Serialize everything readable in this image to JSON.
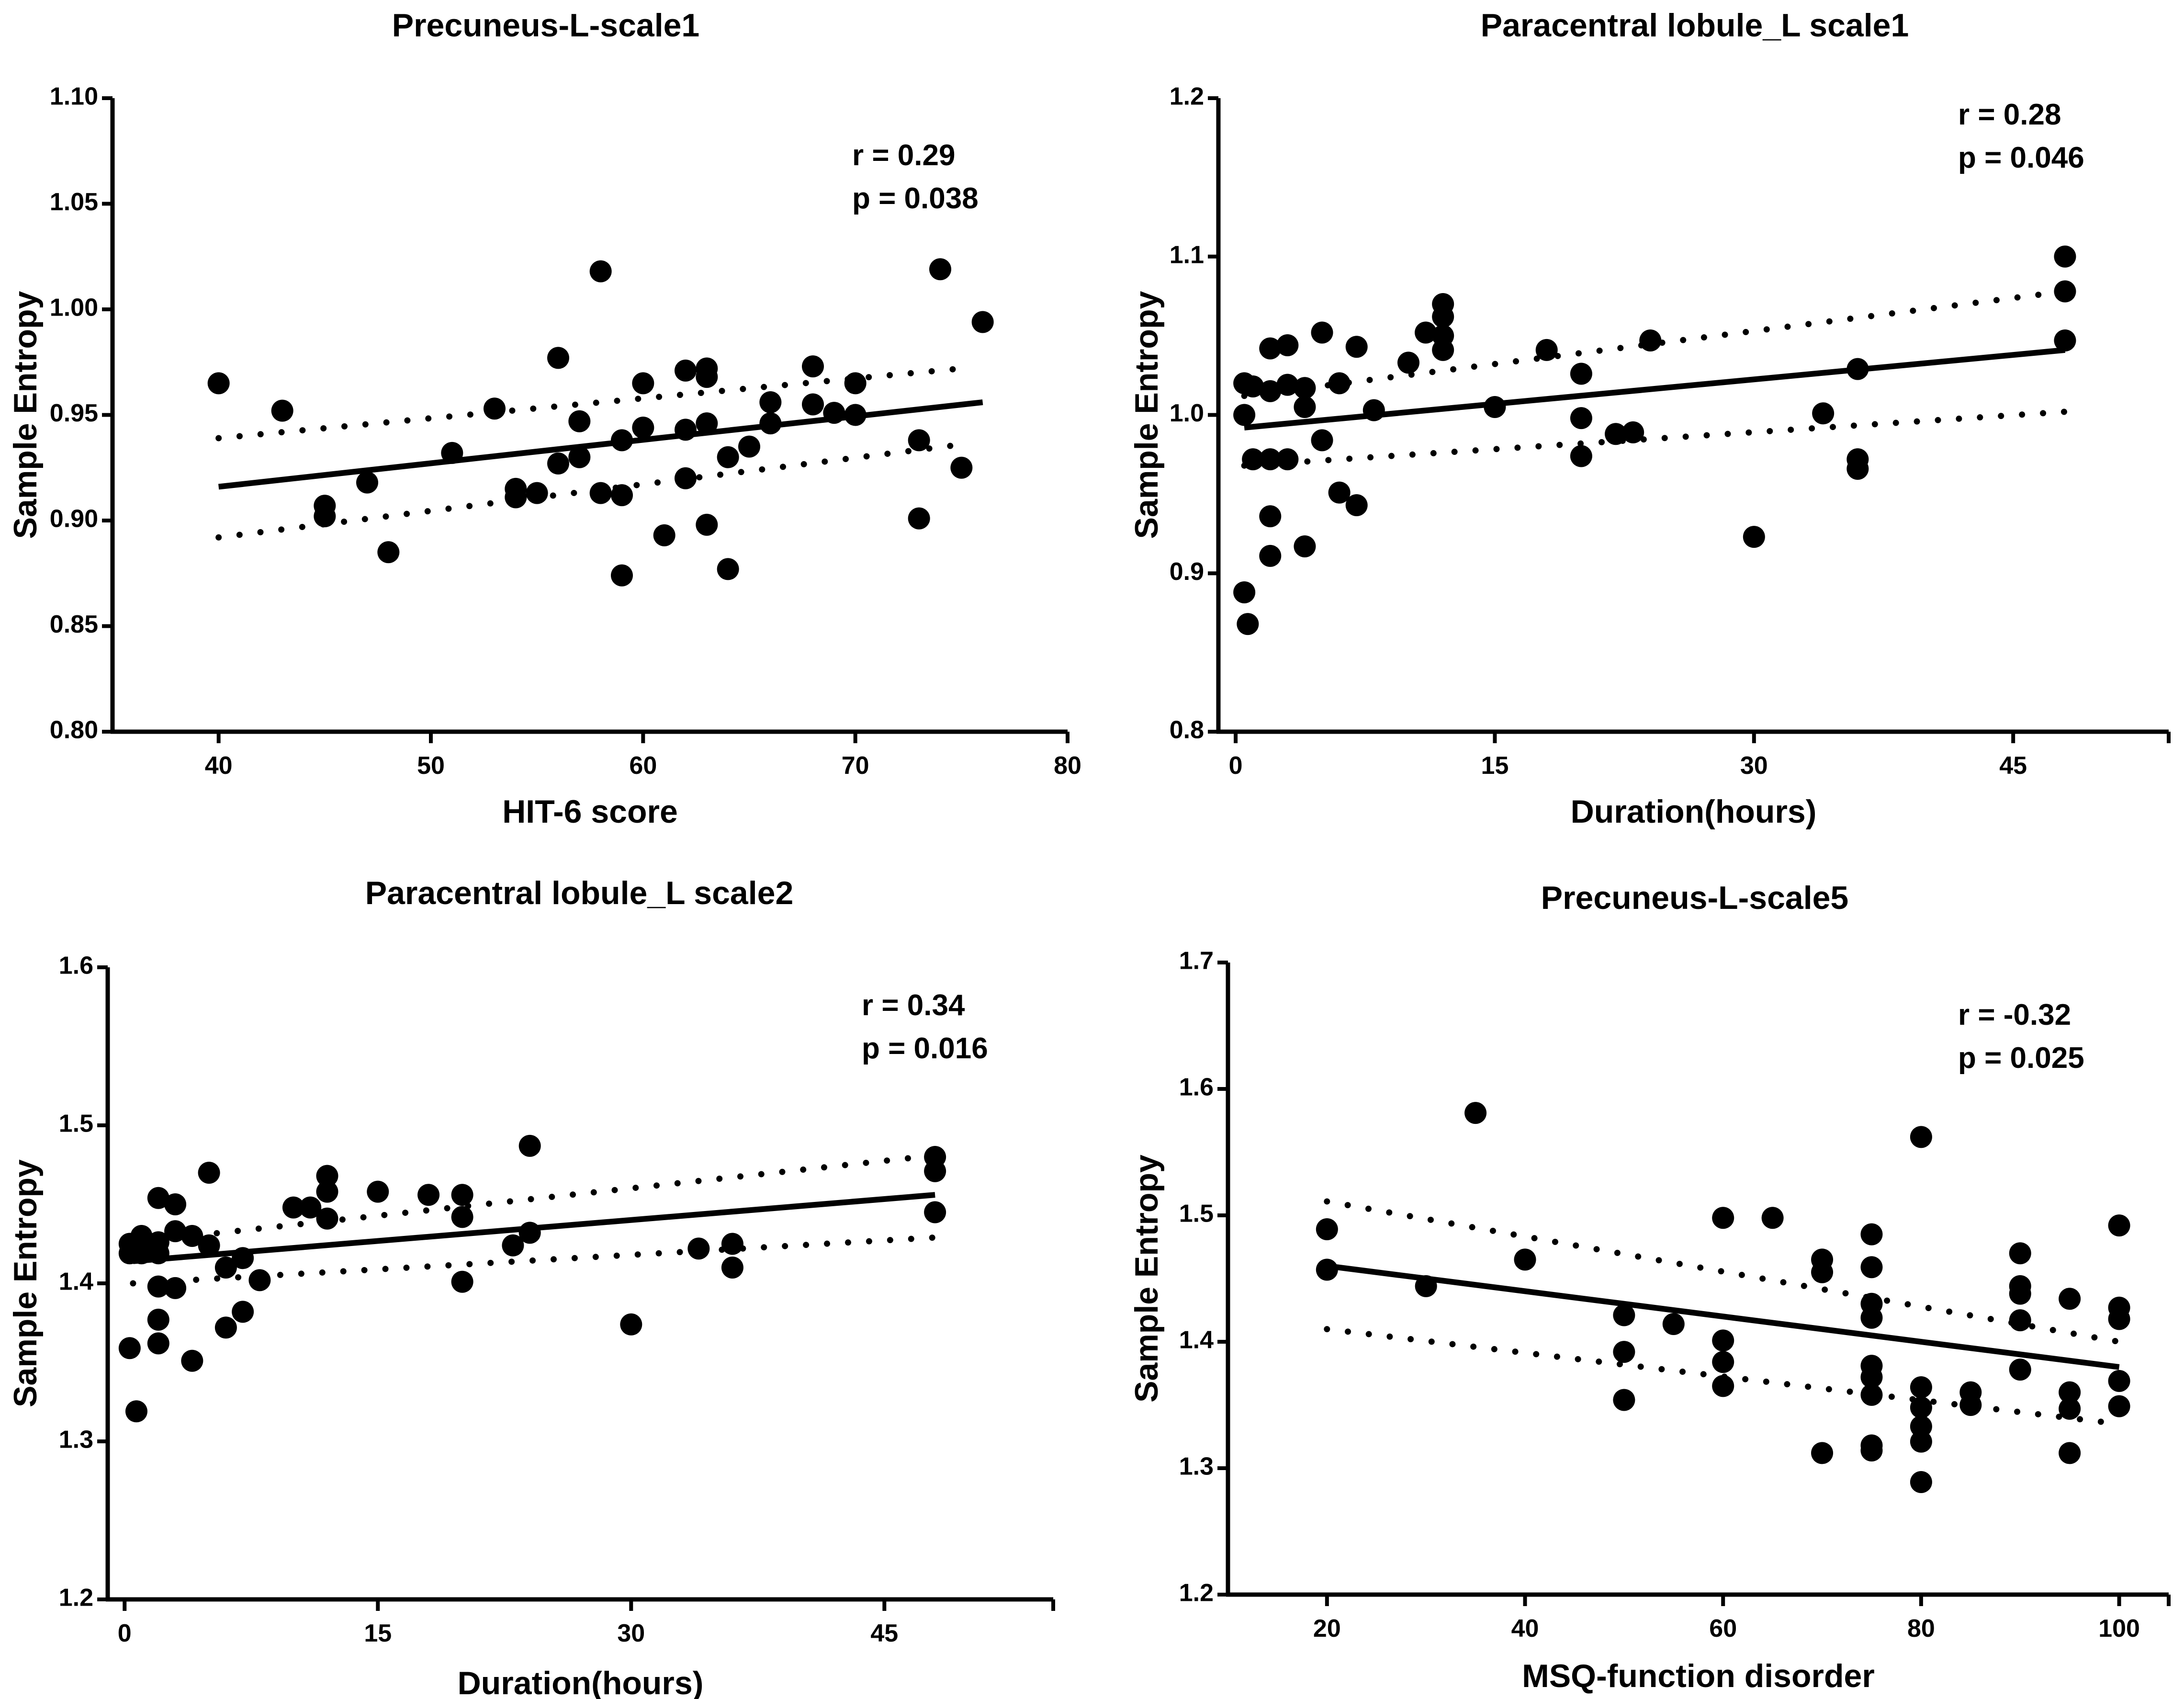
{
  "chart_data": [
    {
      "type": "scatter",
      "title": "Precuneus-L-scale1",
      "xlabel": "HIT-6 score",
      "ylabel": "Sample Entropy",
      "xlim": [
        35,
        80
      ],
      "ylim": [
        0.8,
        1.1
      ],
      "xticks": [
        40,
        50,
        60,
        70,
        80
      ],
      "yticks": [
        0.8,
        0.85,
        0.9,
        0.95,
        1.0,
        1.05,
        1.1
      ],
      "x_tick_labels": [
        "40",
        "50",
        "60",
        "70",
        "80"
      ],
      "y_tick_labels": [
        "0.80",
        "0.85",
        "0.90",
        "0.95",
        "1.00",
        "1.05",
        "1.10"
      ],
      "stats": {
        "r": "r = 0.29",
        "p": "p = 0.038"
      },
      "regression": {
        "x": [
          40,
          76
        ],
        "y": [
          0.916,
          0.956
        ]
      },
      "ci_upper": {
        "x": [
          40,
          75
        ],
        "y": [
          0.939,
          0.972
        ]
      },
      "ci_lower": {
        "x": [
          40,
          75
        ],
        "y": [
          0.892,
          0.936
        ]
      },
      "points": [
        [
          40,
          0.965
        ],
        [
          43,
          0.952
        ],
        [
          45,
          0.907
        ],
        [
          45,
          0.902
        ],
        [
          47,
          0.918
        ],
        [
          48,
          0.885
        ],
        [
          51,
          0.932
        ],
        [
          53,
          0.953
        ],
        [
          54,
          0.915
        ],
        [
          54,
          0.911
        ],
        [
          55,
          0.913
        ],
        [
          56,
          0.977
        ],
        [
          56,
          0.927
        ],
        [
          57,
          0.947
        ],
        [
          57,
          0.93
        ],
        [
          58,
          1.018
        ],
        [
          58,
          0.913
        ],
        [
          59,
          0.938
        ],
        [
          59,
          0.912
        ],
        [
          59,
          0.874
        ],
        [
          60,
          0.965
        ],
        [
          60,
          0.944
        ],
        [
          61,
          0.893
        ],
        [
          62,
          0.971
        ],
        [
          62,
          0.943
        ],
        [
          62,
          0.92
        ],
        [
          63,
          0.972
        ],
        [
          63,
          0.968
        ],
        [
          63,
          0.946
        ],
        [
          63,
          0.898
        ],
        [
          64,
          0.93
        ],
        [
          64,
          0.877
        ],
        [
          65,
          0.935
        ],
        [
          66,
          0.956
        ],
        [
          66,
          0.946
        ],
        [
          68,
          0.973
        ],
        [
          68,
          0.955
        ],
        [
          69,
          0.951
        ],
        [
          70,
          0.965
        ],
        [
          70,
          0.95
        ],
        [
          73,
          0.938
        ],
        [
          73,
          0.901
        ],
        [
          74,
          1.019
        ],
        [
          75,
          0.925
        ],
        [
          76,
          0.994
        ]
      ]
    },
    {
      "type": "scatter",
      "title": "Paracentral lobule_L scale1",
      "xlabel": "Duration(hours)",
      "ylabel": "Sample Entropy",
      "xlim": [
        -1,
        54
      ],
      "ylim": [
        0.8,
        1.2
      ],
      "xticks": [
        0,
        15,
        30,
        45
      ],
      "yticks": [
        0.8,
        0.9,
        1.0,
        1.1,
        1.2
      ],
      "x_tick_labels": [
        "0",
        "15",
        "30",
        "45"
      ],
      "y_tick_labels": [
        "0.8",
        "0.9",
        "1.0",
        "1.1",
        "1.2"
      ],
      "stats": {
        "r": "r = 0.28",
        "p": "p = 0.046"
      },
      "regression": {
        "x": [
          0.5,
          48
        ],
        "y": [
          0.992,
          1.041
        ]
      },
      "ci_upper": {
        "x": [
          0.5,
          48
        ],
        "y": [
          1.012,
          1.078
        ]
      },
      "ci_lower": {
        "x": [
          0.5,
          48
        ],
        "y": [
          0.968,
          1.002
        ]
      },
      "points": [
        [
          0.5,
          1.02
        ],
        [
          0.5,
          1.0
        ],
        [
          0.5,
          0.888
        ],
        [
          0.7,
          0.868
        ],
        [
          1,
          1.018
        ],
        [
          1,
          0.972
        ],
        [
          2,
          1.042
        ],
        [
          2,
          1.015
        ],
        [
          2,
          0.972
        ],
        [
          2,
          0.936
        ],
        [
          2,
          0.911
        ],
        [
          3,
          1.044
        ],
        [
          3,
          1.019
        ],
        [
          3,
          0.972
        ],
        [
          4,
          1.017
        ],
        [
          4,
          1.005
        ],
        [
          4,
          0.917
        ],
        [
          5,
          1.052
        ],
        [
          5,
          0.984
        ],
        [
          6,
          1.02
        ],
        [
          6,
          0.951
        ],
        [
          7,
          1.043
        ],
        [
          7,
          0.943
        ],
        [
          8,
          1.003
        ],
        [
          10,
          1.033
        ],
        [
          11,
          1.052
        ],
        [
          12,
          1.07
        ],
        [
          12,
          1.062
        ],
        [
          12,
          1.05
        ],
        [
          12,
          1.041
        ],
        [
          15,
          1.005
        ],
        [
          18,
          1.041
        ],
        [
          20,
          1.026
        ],
        [
          20,
          0.998
        ],
        [
          20,
          0.974
        ],
        [
          22,
          0.988
        ],
        [
          23,
          0.989
        ],
        [
          24,
          1.047
        ],
        [
          30,
          0.923
        ],
        [
          34,
          1.001
        ],
        [
          36,
          1.029
        ],
        [
          36,
          0.972
        ],
        [
          36,
          0.966
        ],
        [
          48,
          1.1
        ],
        [
          48,
          1.078
        ],
        [
          48,
          1.047
        ]
      ]
    },
    {
      "type": "scatter",
      "title": "Paracentral lobule_L scale2",
      "xlabel": "Duration(hours)",
      "ylabel": "Sample Entropy",
      "xlim": [
        -1,
        55
      ],
      "ylim": [
        1.2,
        1.6
      ],
      "xticks": [
        0,
        15,
        30,
        45
      ],
      "yticks": [
        1.2,
        1.3,
        1.4,
        1.5,
        1.6
      ],
      "x_tick_labels": [
        "0",
        "15",
        "30",
        "45"
      ],
      "y_tick_labels": [
        "1.2",
        "1.3",
        "1.4",
        "1.5",
        "1.6"
      ],
      "stats": {
        "r": "r = 0.34",
        "p": "p = 0.016"
      },
      "regression": {
        "x": [
          0.5,
          48
        ],
        "y": [
          1.414,
          1.456
        ]
      },
      "ci_upper": {
        "x": [
          0.5,
          48
        ],
        "y": [
          1.426,
          1.481
        ]
      },
      "ci_lower": {
        "x": [
          0.5,
          48
        ],
        "y": [
          1.4,
          1.429
        ]
      },
      "points": [
        [
          0.3,
          1.425
        ],
        [
          0.3,
          1.419
        ],
        [
          0.3,
          1.359
        ],
        [
          0.7,
          1.319
        ],
        [
          1,
          1.43
        ],
        [
          1,
          1.419
        ],
        [
          2,
          1.454
        ],
        [
          2,
          1.426
        ],
        [
          2,
          1.419
        ],
        [
          2,
          1.398
        ],
        [
          2,
          1.377
        ],
        [
          2,
          1.362
        ],
        [
          3,
          1.45
        ],
        [
          3,
          1.433
        ],
        [
          3,
          1.397
        ],
        [
          4,
          1.43
        ],
        [
          4,
          1.351
        ],
        [
          5,
          1.47
        ],
        [
          5,
          1.424
        ],
        [
          6,
          1.41
        ],
        [
          6,
          1.372
        ],
        [
          7,
          1.416
        ],
        [
          7,
          1.382
        ],
        [
          8,
          1.402
        ],
        [
          10,
          1.448
        ],
        [
          11,
          1.448
        ],
        [
          12,
          1.468
        ],
        [
          12,
          1.458
        ],
        [
          12,
          1.441
        ],
        [
          15,
          1.458
        ],
        [
          18,
          1.456
        ],
        [
          20,
          1.456
        ],
        [
          20,
          1.442
        ],
        [
          20,
          1.401
        ],
        [
          23,
          1.424
        ],
        [
          24,
          1.487
        ],
        [
          24,
          1.432
        ],
        [
          30,
          1.374
        ],
        [
          34,
          1.422
        ],
        [
          36,
          1.425
        ],
        [
          36,
          1.41
        ],
        [
          48,
          1.48
        ],
        [
          48,
          1.471
        ],
        [
          48,
          1.445
        ]
      ]
    },
    {
      "type": "scatter",
      "title": "Precuneus-L-scale5",
      "xlabel": "MSQ-function disorder",
      "ylabel": "Sample Entropy",
      "xlim": [
        10,
        105
      ],
      "ylim": [
        1.2,
        1.7
      ],
      "xticks": [
        20,
        40,
        60,
        80,
        100
      ],
      "yticks": [
        1.2,
        1.3,
        1.4,
        1.5,
        1.6,
        1.7
      ],
      "x_tick_labels": [
        "20",
        "40",
        "60",
        "80",
        "100"
      ],
      "y_tick_labels": [
        "1.2",
        "1.3",
        "1.4",
        "1.5",
        "1.6",
        "1.7"
      ],
      "stats": {
        "r": "r = -0.32",
        "p": "p = 0.025"
      },
      "regression": {
        "x": [
          20,
          100
        ],
        "y": [
          1.46,
          1.38
        ]
      },
      "ci_upper": {
        "x": [
          20,
          100
        ],
        "y": [
          1.511,
          1.4
        ]
      },
      "ci_lower": {
        "x": [
          20,
          100
        ],
        "y": [
          1.41,
          1.335
        ]
      },
      "points": [
        [
          20,
          1.489
        ],
        [
          20,
          1.457
        ],
        [
          30,
          1.444
        ],
        [
          35,
          1.581
        ],
        [
          40,
          1.465
        ],
        [
          50,
          1.421
        ],
        [
          50,
          1.392
        ],
        [
          50,
          1.354
        ],
        [
          55,
          1.414
        ],
        [
          60,
          1.498
        ],
        [
          60,
          1.401
        ],
        [
          60,
          1.384
        ],
        [
          60,
          1.365
        ],
        [
          65,
          1.498
        ],
        [
          70,
          1.465
        ],
        [
          70,
          1.455
        ],
        [
          70,
          1.312
        ],
        [
          75,
          1.485
        ],
        [
          75,
          1.459
        ],
        [
          75,
          1.43
        ],
        [
          75,
          1.419
        ],
        [
          75,
          1.381
        ],
        [
          75,
          1.372
        ],
        [
          75,
          1.358
        ],
        [
          75,
          1.318
        ],
        [
          75,
          1.314
        ],
        [
          80,
          1.562
        ],
        [
          80,
          1.364
        ],
        [
          80,
          1.348
        ],
        [
          80,
          1.333
        ],
        [
          80,
          1.321
        ],
        [
          80,
          1.289
        ],
        [
          85,
          1.36
        ],
        [
          85,
          1.35
        ],
        [
          90,
          1.47
        ],
        [
          90,
          1.444
        ],
        [
          90,
          1.438
        ],
        [
          90,
          1.417
        ],
        [
          90,
          1.378
        ],
        [
          95,
          1.434
        ],
        [
          95,
          1.36
        ],
        [
          95,
          1.347
        ],
        [
          95,
          1.312
        ],
        [
          100,
          1.492
        ],
        [
          100,
          1.427
        ],
        [
          100,
          1.418
        ],
        [
          100,
          1.369
        ],
        [
          100,
          1.349
        ]
      ]
    }
  ]
}
